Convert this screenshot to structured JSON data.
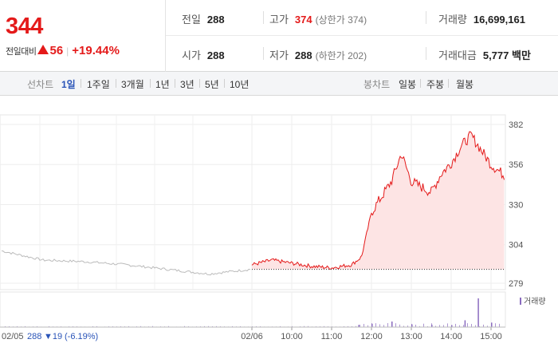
{
  "quote": {
    "price": "344",
    "change_label": "전일대비",
    "change_value": "56",
    "change_rate": "+19.44%",
    "colors": {
      "up": "#e41a1a",
      "down": "#2a54b8"
    },
    "prev_close_label": "전일",
    "prev_close": "288",
    "high_label": "고가",
    "high": "374",
    "upper_limit": "(상한가 374)",
    "volume_label": "거래량",
    "volume": "16,699,161",
    "open_label": "시가",
    "open": "288",
    "low_label": "저가",
    "low": "288",
    "lower_limit": "(하한가 202)",
    "amount_label": "거래대금",
    "amount": "5,777 백만"
  },
  "period_tabs": {
    "label": "선차트",
    "items": [
      "1일",
      "1주일",
      "3개월",
      "1년",
      "3년",
      "5년",
      "10년"
    ],
    "active": "1일"
  },
  "candle_tabs": {
    "label": "봉차트",
    "items": [
      "일봉",
      "주봉",
      "월봉"
    ]
  },
  "footer": {
    "prev_day_date": "02/05",
    "prev_day_close": "288",
    "prev_day_change": "▼19",
    "prev_day_rate": "(-6.19%)"
  },
  "chart_data": {
    "type": "line",
    "title": "",
    "ylabel": "",
    "ylim": [
      276,
      384
    ],
    "y_ticks": [
      382,
      356,
      330,
      304,
      279
    ],
    "time_ticks": [
      "02/06",
      "10:00",
      "11:00",
      "12:00",
      "13:00",
      "14:00",
      "15:00"
    ],
    "prev_day_label": "02/05",
    "base_price": 288,
    "legend_volume": "거래량",
    "series": [
      {
        "color": "#bbbbbb",
        "x": [
          "02/05 09:00",
          "02/05 10:00",
          "02/05 11:00",
          "02/05 12:00",
          "02/05 13:00",
          "02/05 14:00",
          "02/05 15:30"
        ],
        "values": [
          300,
          294,
          293,
          291,
          288,
          285,
          288
        ]
      },
      {
        "color": "#e41a1a",
        "x": [
          "09:00",
          "09:30",
          "10:00",
          "10:30",
          "11:00",
          "11:30",
          "11:45",
          "12:00",
          "12:30",
          "12:45",
          "13:00",
          "13:30",
          "13:45",
          "14:00",
          "14:15",
          "14:30",
          "15:00",
          "15:20"
        ],
        "values": [
          291,
          294,
          292,
          290,
          289,
          291,
          296,
          325,
          345,
          363,
          345,
          338,
          350,
          357,
          368,
          375,
          356,
          349
        ]
      }
    ],
    "volume_bars": {
      "color": "#8a6bbf",
      "x": [
        "11:40",
        "12:00",
        "12:30",
        "13:00",
        "13:30",
        "14:00",
        "14:20",
        "14:40",
        "15:00"
      ],
      "values": [
        120000,
        180000,
        310000,
        150000,
        130000,
        110000,
        380000,
        1600000,
        250000
      ]
    },
    "grid": true
  }
}
